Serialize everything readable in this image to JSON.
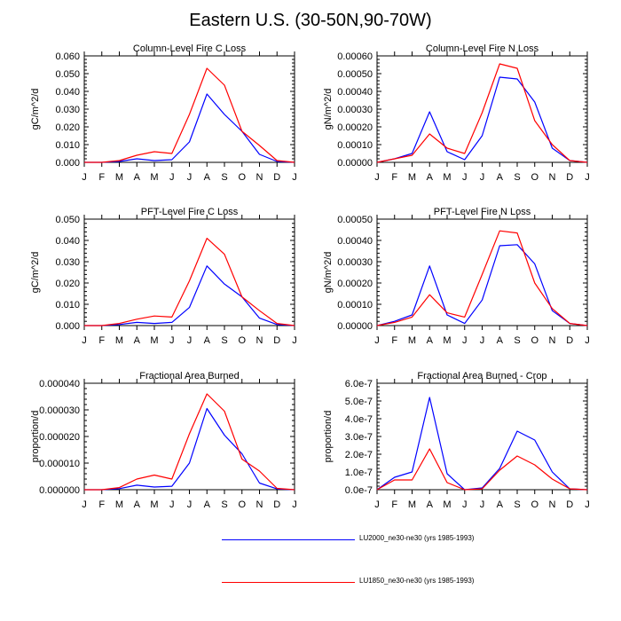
{
  "title": "Eastern U.S. (30-50N,90-70W)",
  "colors": {
    "series1": "#0000ff",
    "series2": "#ff0000"
  },
  "legend": [
    {
      "name": "LU2000_ne30-ne30 (yrs 1985-1993)",
      "color": "#0000ff"
    },
    {
      "name": "LU1850_ne30-ne30 (yrs 1985-1993)",
      "color": "#ff0000"
    }
  ],
  "chart_data": [
    {
      "type": "line",
      "title": "Column-Level Fire C Loss",
      "ylabel": "gC/m^2/d",
      "xlabel": "",
      "categories": [
        "J",
        "F",
        "M",
        "A",
        "M",
        "J",
        "J",
        "A",
        "S",
        "O",
        "N",
        "D",
        "J"
      ],
      "ylim": [
        0,
        0.06
      ],
      "yticks": [
        0,
        0.01,
        0.02,
        0.03,
        0.04,
        0.05,
        0.06
      ],
      "ytick_labels": [
        "0.000",
        "0.010",
        "0.020",
        "0.030",
        "0.040",
        "0.050",
        "0.060"
      ],
      "series": [
        {
          "name": "LU2000_ne30-ne30 (yrs 1985-1993)",
          "values": [
            0,
            0,
            0.0005,
            0.002,
            0.001,
            0.0015,
            0.0115,
            0.0385,
            0.027,
            0.0175,
            0.0045,
            0.0005,
            0
          ]
        },
        {
          "name": "LU1850_ne30-ne30 (yrs 1985-1993)",
          "values": [
            0,
            0,
            0.001,
            0.004,
            0.006,
            0.005,
            0.027,
            0.053,
            0.0435,
            0.0175,
            0.0095,
            0.001,
            0
          ]
        }
      ]
    },
    {
      "type": "line",
      "title": "Column-Level Fire N Loss",
      "ylabel": "gN/m^2/d",
      "xlabel": "",
      "categories": [
        "J",
        "F",
        "M",
        "A",
        "M",
        "J",
        "J",
        "A",
        "S",
        "O",
        "N",
        "D",
        "J"
      ],
      "ylim": [
        0,
        0.0006
      ],
      "yticks": [
        0,
        0.0001,
        0.0002,
        0.0003,
        0.0004,
        0.0005,
        0.0006
      ],
      "ytick_labels": [
        "0.00000",
        "0.00010",
        "0.00020",
        "0.00030",
        "0.00040",
        "0.00050",
        "0.00060"
      ],
      "series": [
        {
          "name": "LU2000_ne30-ne30 (yrs 1985-1993)",
          "values": [
            0,
            2e-05,
            5e-05,
            0.000285,
            6e-05,
            1.5e-05,
            0.00015,
            0.00048,
            0.00047,
            0.00034,
            8e-05,
            1e-05,
            0
          ]
        },
        {
          "name": "LU1850_ne30-ne30 (yrs 1985-1993)",
          "values": [
            0,
            2e-05,
            4e-05,
            0.00016,
            8e-05,
            5e-05,
            0.00028,
            0.000555,
            0.00053,
            0.000235,
            0.0001,
            1e-05,
            0
          ]
        }
      ]
    },
    {
      "type": "line",
      "title": "PFT-Level Fire C Loss",
      "ylabel": "gC/m^2/d",
      "xlabel": "",
      "categories": [
        "J",
        "F",
        "M",
        "A",
        "M",
        "J",
        "J",
        "A",
        "S",
        "O",
        "N",
        "D",
        "J"
      ],
      "ylim": [
        0,
        0.05
      ],
      "yticks": [
        0,
        0.01,
        0.02,
        0.03,
        0.04,
        0.05
      ],
      "ytick_labels": [
        "0.000",
        "0.010",
        "0.020",
        "0.030",
        "0.040",
        "0.050"
      ],
      "series": [
        {
          "name": "LU2000_ne30-ne30 (yrs 1985-1993)",
          "values": [
            0,
            0,
            0.0005,
            0.0015,
            0.001,
            0.0015,
            0.0085,
            0.028,
            0.0195,
            0.0135,
            0.0035,
            0.0005,
            0
          ]
        },
        {
          "name": "LU1850_ne30-ne30 (yrs 1985-1993)",
          "values": [
            0,
            0,
            0.001,
            0.003,
            0.0045,
            0.004,
            0.021,
            0.041,
            0.0335,
            0.0135,
            0.007,
            0.001,
            0
          ]
        }
      ]
    },
    {
      "type": "line",
      "title": "PFT-Level Fire N Loss",
      "ylabel": "gN/m^2/d",
      "xlabel": "",
      "categories": [
        "J",
        "F",
        "M",
        "A",
        "M",
        "J",
        "J",
        "A",
        "S",
        "O",
        "N",
        "D",
        "J"
      ],
      "ylim": [
        0,
        0.0005
      ],
      "yticks": [
        0,
        0.0001,
        0.0002,
        0.0003,
        0.0004,
        0.0005
      ],
      "ytick_labels": [
        "0.00000",
        "0.00010",
        "0.00020",
        "0.00030",
        "0.00040",
        "0.00050"
      ],
      "series": [
        {
          "name": "LU2000_ne30-ne30 (yrs 1985-1993)",
          "values": [
            0,
            2e-05,
            5e-05,
            0.00028,
            5e-05,
            1e-05,
            0.00012,
            0.000375,
            0.00038,
            0.00029,
            7e-05,
            1e-05,
            0
          ]
        },
        {
          "name": "LU1850_ne30-ne30 (yrs 1985-1993)",
          "values": [
            0,
            1.5e-05,
            4e-05,
            0.000145,
            6e-05,
            4e-05,
            0.00024,
            0.000445,
            0.000435,
            0.0002,
            8e-05,
            1e-05,
            0
          ]
        }
      ]
    },
    {
      "type": "line",
      "title": "Fractional Area Burned",
      "ylabel": "proportion/d",
      "xlabel": "",
      "categories": [
        "J",
        "F",
        "M",
        "A",
        "M",
        "J",
        "J",
        "A",
        "S",
        "O",
        "N",
        "D",
        "J"
      ],
      "ylim": [
        0,
        4e-05
      ],
      "yticks": [
        0,
        1e-05,
        2e-05,
        3e-05,
        4e-05
      ],
      "ytick_labels": [
        "0.000000",
        "0.000010",
        "0.000020",
        "0.000030",
        "0.000040"
      ],
      "series": [
        {
          "name": "LU2000_ne30-ne30 (yrs 1985-1993)",
          "values": [
            0,
            0,
            4e-07,
            1.7e-06,
            1e-06,
            1.3e-06,
            1e-05,
            3.05e-05,
            2.05e-05,
            1.35e-05,
            2.5e-06,
            3e-07,
            0
          ]
        },
        {
          "name": "LU1850_ne30-ne30 (yrs 1985-1993)",
          "values": [
            0,
            0,
            8e-07,
            4e-06,
            5.5e-06,
            4e-06,
            2.1e-05,
            3.6e-05,
            2.95e-05,
            1.15e-05,
            7e-06,
            5e-07,
            0
          ]
        }
      ]
    },
    {
      "type": "line",
      "title": "Fractional Area Burned - Crop",
      "ylabel": "proportion/d",
      "xlabel": "",
      "categories": [
        "J",
        "F",
        "M",
        "A",
        "M",
        "J",
        "J",
        "A",
        "S",
        "O",
        "N",
        "D",
        "J"
      ],
      "ylim": [
        0,
        6e-07
      ],
      "yticks": [
        0,
        1e-07,
        2e-07,
        3e-07,
        4e-07,
        5e-07,
        6e-07
      ],
      "ytick_labels": [
        "0.0e-7",
        "1.0e-7",
        "2.0e-7",
        "3.0e-7",
        "4.0e-7",
        "5.0e-7",
        "6.0e-7"
      ],
      "series": [
        {
          "name": "LU2000_ne30-ne30 (yrs 1985-1993)",
          "values": [
            0,
            7e-08,
            1e-07,
            5.2e-07,
            9e-08,
            0,
            1e-08,
            1.2e-07,
            3.3e-07,
            2.8e-07,
            1e-07,
            5e-09,
            0
          ]
        },
        {
          "name": "LU1850_ne30-ne30 (yrs 1985-1993)",
          "values": [
            0,
            5.5e-08,
            5.5e-08,
            2.3e-07,
            4e-08,
            0,
            5e-09,
            1.1e-07,
            1.9e-07,
            1.4e-07,
            6e-08,
            5e-09,
            0
          ]
        }
      ]
    }
  ]
}
